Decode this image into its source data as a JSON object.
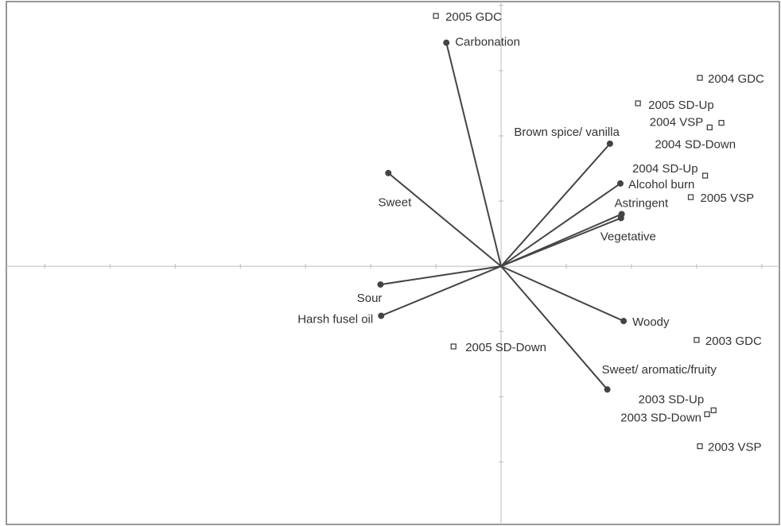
{
  "chart_data": {
    "type": "biplot",
    "xlim": [
      -7.59,
      4.27
    ],
    "ylim": [
      -3.96,
      4.06
    ],
    "xticks": [
      -7,
      -6,
      -5,
      -4,
      -3,
      -2,
      -1,
      1,
      2,
      3,
      4
    ],
    "yticks": [
      -3,
      -2,
      -1,
      1,
      2,
      3,
      4
    ],
    "series": [
      {
        "marker": "vector",
        "color": "#444444",
        "labels": [
          "Carbonation",
          "Sweet",
          "Sour",
          "Harsh fusel oil",
          "Brown spice/ vanilla",
          "Alcohol burn",
          "Astringent",
          "Vegetative",
          "Woody",
          "Sweet/ aromatic/fruity"
        ],
        "x": [
          -0.84,
          -1.73,
          -1.85,
          -1.84,
          1.67,
          1.83,
          1.85,
          1.84,
          1.88,
          1.63
        ],
        "values": [
          3.43,
          1.43,
          -0.28,
          -0.76,
          1.88,
          1.27,
          0.8,
          0.74,
          -0.84,
          -1.89
        ]
      },
      {
        "marker": "square",
        "color": "#444444",
        "labels": [
          "2005 GDC",
          "2004 GDC",
          "2005 SD-Up",
          "2004 VSP",
          "2004 SD-Down",
          "2004 SD-Up",
          "2005 VSP",
          "2005 SD-Down",
          "2003 GDC",
          "2003 SD-Up",
          "2003 SD-Down",
          "2003 VSP"
        ],
        "x": [
          -1.0,
          3.05,
          2.1,
          3.2,
          3.38,
          3.13,
          2.91,
          -0.73,
          3.0,
          3.26,
          3.16,
          3.05
        ],
        "values": [
          3.84,
          2.89,
          2.5,
          2.13,
          2.2,
          1.39,
          1.06,
          -1.23,
          -1.13,
          -2.21,
          -2.27,
          -2.76
        ]
      }
    ]
  }
}
